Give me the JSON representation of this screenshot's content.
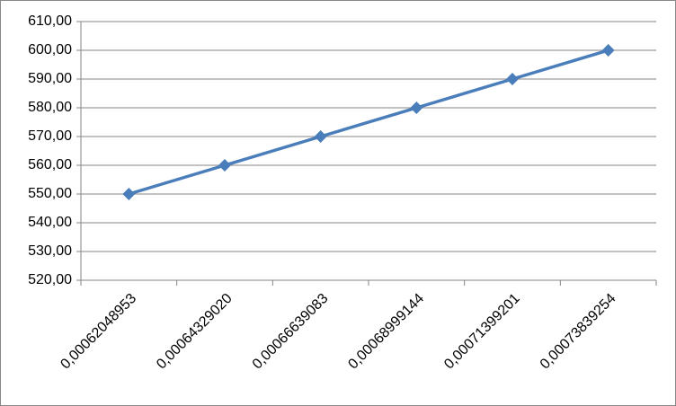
{
  "chart_data": {
    "type": "line",
    "categories": [
      "0,00062048953",
      "0,00064329020",
      "0,00066639083",
      "0,00068999144",
      "0,00071399201",
      "0,00073839254"
    ],
    "series": [
      {
        "color": "#4a7ebb",
        "values": [
          550,
          560,
          570,
          580,
          590,
          600
        ]
      }
    ],
    "ylim": [
      520,
      610
    ],
    "yticks": [
      {
        "value": 520,
        "label": "520,00"
      },
      {
        "value": 530,
        "label": "530,00"
      },
      {
        "value": 540,
        "label": "540,00"
      },
      {
        "value": 550,
        "label": "550,00"
      },
      {
        "value": 560,
        "label": "560,00"
      },
      {
        "value": 570,
        "label": "570,00"
      },
      {
        "value": 580,
        "label": "580,00"
      },
      {
        "value": 590,
        "label": "590,00"
      },
      {
        "value": 600,
        "label": "600,00"
      },
      {
        "value": 610,
        "label": "610,00"
      }
    ],
    "grid": true
  }
}
